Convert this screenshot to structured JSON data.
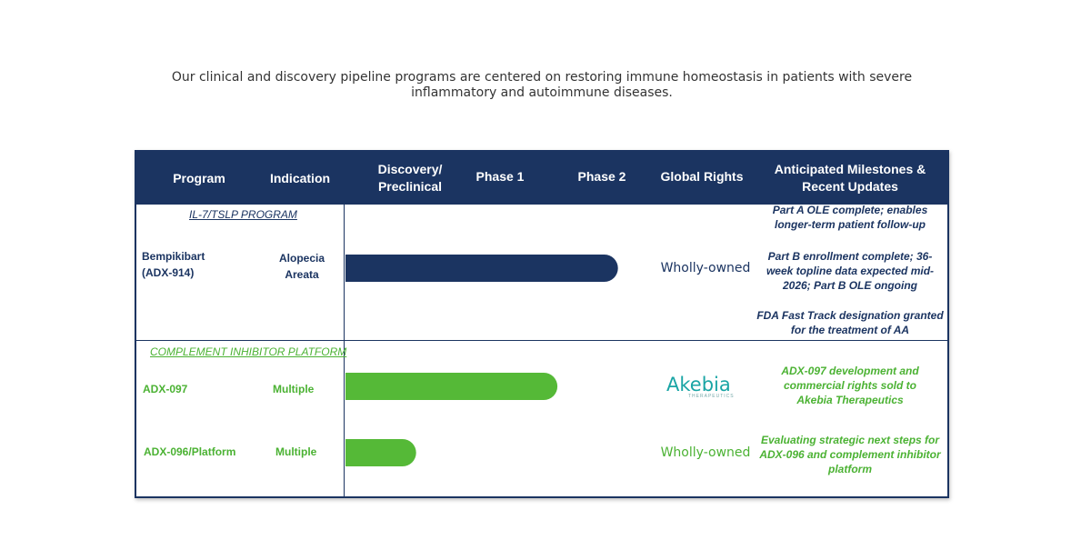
{
  "intro_text": "Our clinical and discovery pipeline programs are centered on restoring immune homeostasis in patients with severe inflammatory and autoimmune diseases.",
  "header": {
    "program": "Program",
    "indication": "Indication",
    "discovery_line1": "Discovery/",
    "discovery_line2": "Preclinical",
    "phase1": "Phase 1",
    "phase2": "Phase 2",
    "global_rights": "Global Rights",
    "milestones_line1": "Anticipated Milestones &",
    "milestones_line2": "Recent Updates"
  },
  "sections": [
    {
      "title": "IL-7/TSLP PROGRAM",
      "programs": [
        {
          "program_line1": "Bempikibart",
          "program_line2": "(ADX-914)",
          "indication_line1": "Alopecia",
          "indication_line2": "Areata",
          "rights": "Wholly-owned",
          "milestones": [
            "Part A OLE complete; enables longer-term patient follow-up",
            "Part B enrollment complete; 36-week topline data expected mid-2026; Part B OLE ongoing",
            "FDA Fast Track designation granted for the treatment of AA"
          ]
        }
      ]
    },
    {
      "title": "COMPLEMENT INHIBITOR PLATFORM",
      "programs": [
        {
          "program_line1": "ADX-097",
          "indication_line1": "Multiple",
          "rights_logo": {
            "word": "Akebia",
            "sub": "THERAPEUTICS"
          },
          "milestones": [
            "ADX-097 development and commercial rights sold to Akebia Therapeutics"
          ]
        },
        {
          "program_line1": "ADX-096/Platform",
          "indication_line1": "Multiple",
          "rights": "Wholly-owned",
          "milestones": [
            "Evaluating strategic next steps for ADX-096 and complement inhibitor platform"
          ]
        }
      ]
    }
  ],
  "chart_data": {
    "type": "bar",
    "orientation": "horizontal",
    "stages": [
      "Discovery/Preclinical",
      "Phase 1",
      "Phase 2"
    ],
    "categories": [
      "Bempikibart (ADX-914)",
      "ADX-097",
      "ADX-096/Platform"
    ],
    "values": [
      2.7,
      2.1,
      0.7
    ],
    "xlim": [
      0,
      3
    ],
    "colors": [
      "#1b3461",
      "#55b937",
      "#55b937"
    ]
  },
  "colors": {
    "navy": "#1b3461",
    "green": "#4bb233",
    "bar_green": "#55b937",
    "teal": "#1aa5a5"
  }
}
